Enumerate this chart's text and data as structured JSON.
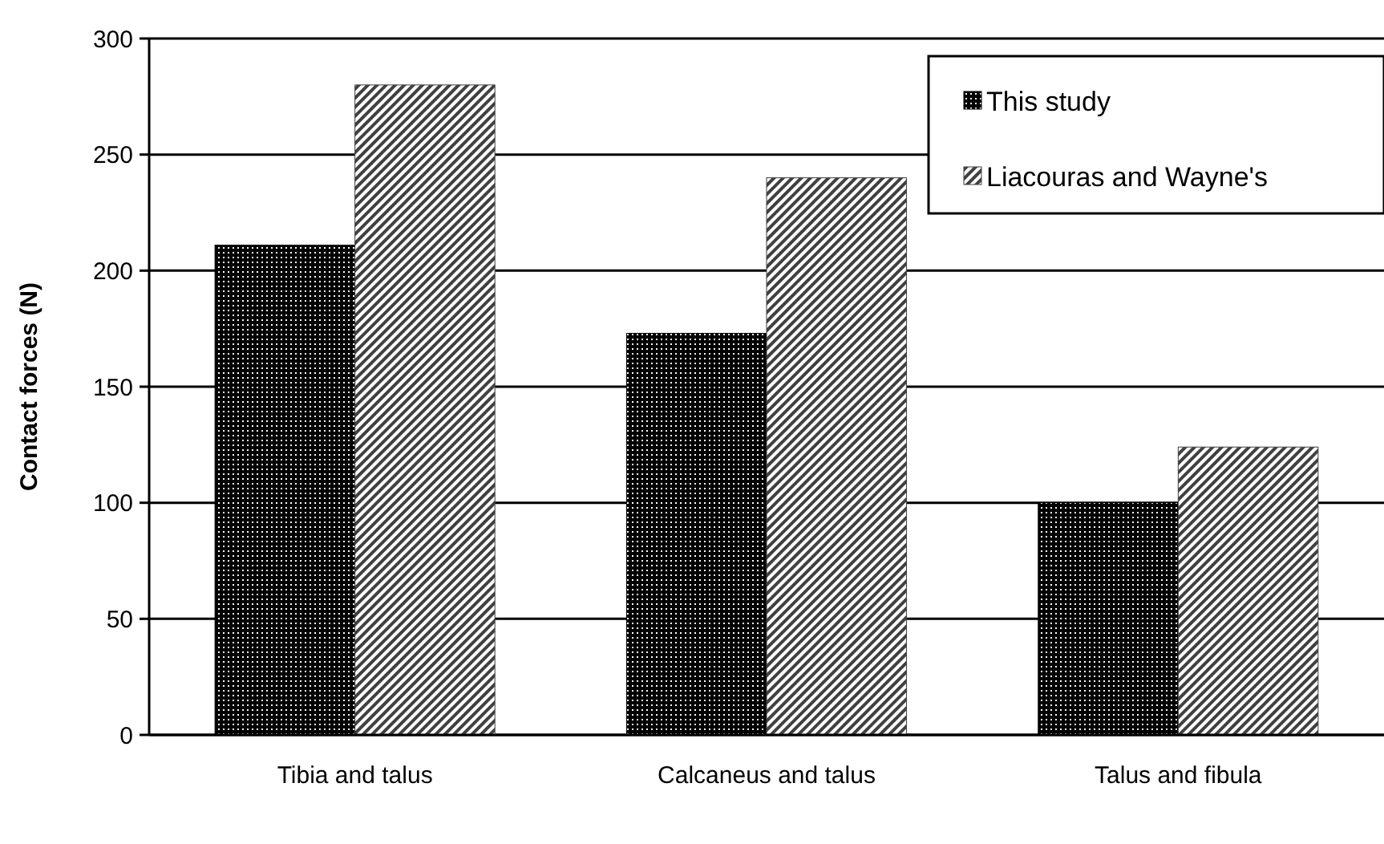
{
  "chart_data": {
    "type": "bar",
    "ylabel": "Contact forces (N)",
    "categories": [
      "Tibia and talus",
      "Calcaneus and talus",
      "Talus and fibula"
    ],
    "series": [
      {
        "name": "This study",
        "color": "#000000",
        "values": [
          211,
          173,
          100
        ]
      },
      {
        "name": "Liacouras and Wayne's",
        "color": "#404040",
        "values": [
          280,
          240,
          124
        ]
      }
    ],
    "ylim": [
      0,
      300
    ],
    "yticks": [
      0,
      50,
      100,
      150,
      200,
      250,
      300
    ],
    "grid": "y",
    "legend": "top right"
  }
}
